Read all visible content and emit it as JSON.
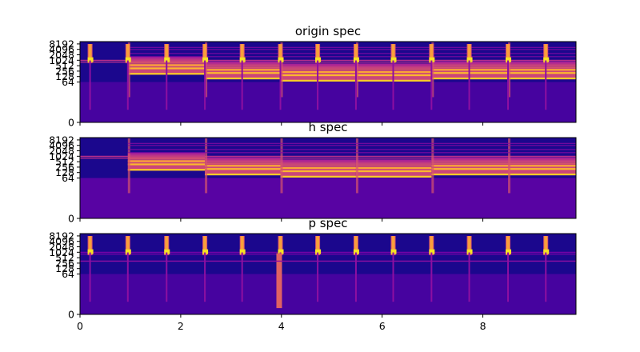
{
  "chart_data": {
    "type": "heatmap",
    "colormap": "plasma",
    "x_axis": {
      "ticks": [
        0,
        2,
        4,
        6,
        8
      ],
      "xlim": [
        0,
        9.85
      ]
    },
    "y_axis": {
      "ticks": [
        "0",
        "64",
        "128",
        "256",
        "512",
        "1024",
        "2048",
        "4096",
        "8192"
      ],
      "scale": "symlog"
    },
    "onsets_seconds": [
      0.2,
      0.95,
      1.72,
      2.48,
      3.22,
      3.98,
      4.72,
      5.48,
      6.22,
      6.98,
      7.73,
      8.5,
      9.25
    ],
    "harmonic_segments": [
      {
        "start": 0.95,
        "end": 2.48,
        "f0_hz": 180
      },
      {
        "start": 2.48,
        "end": 3.98,
        "f0_hz": 100
      },
      {
        "start": 3.98,
        "end": 5.48,
        "f0_hz": 75
      },
      {
        "start": 5.48,
        "end": 6.98,
        "f0_hz": 75
      },
      {
        "start": 6.98,
        "end": 8.5,
        "f0_hz": 100
      },
      {
        "start": 8.5,
        "end": 9.85,
        "f0_hz": 100
      }
    ],
    "panels": [
      {
        "title": "origin spec",
        "content": "harmonic+percussive"
      },
      {
        "title": "h spec",
        "content": "harmonic"
      },
      {
        "title": "p spec",
        "content": "percussive"
      }
    ]
  }
}
